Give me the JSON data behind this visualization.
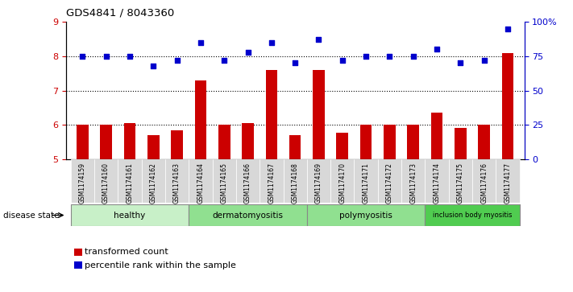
{
  "title": "GDS4841 / 8043360",
  "samples": [
    "GSM1174159",
    "GSM1174160",
    "GSM1174161",
    "GSM1174162",
    "GSM1174163",
    "GSM1174164",
    "GSM1174165",
    "GSM1174166",
    "GSM1174167",
    "GSM1174168",
    "GSM1174169",
    "GSM1174170",
    "GSM1174171",
    "GSM1174172",
    "GSM1174173",
    "GSM1174174",
    "GSM1174175",
    "GSM1174176",
    "GSM1174177"
  ],
  "bar_values": [
    6.0,
    6.0,
    6.05,
    5.7,
    5.85,
    7.3,
    6.0,
    6.05,
    7.6,
    5.7,
    7.6,
    5.78,
    6.0,
    6.0,
    6.0,
    6.35,
    5.9,
    6.0,
    8.1
  ],
  "dot_values_pct": [
    75,
    75,
    75,
    68,
    72,
    85,
    72,
    78,
    85,
    70,
    87,
    72,
    75,
    75,
    75,
    80,
    70,
    72,
    95
  ],
  "group_data": [
    {
      "name": "healthy",
      "start": 0,
      "end": 4,
      "color": "#c8f0c8"
    },
    {
      "name": "dermatomyositis",
      "start": 5,
      "end": 9,
      "color": "#90e090"
    },
    {
      "name": "polymyositis",
      "start": 10,
      "end": 14,
      "color": "#90e090"
    },
    {
      "name": "inclusion body myositis",
      "start": 15,
      "end": 18,
      "color": "#50cc50"
    }
  ],
  "ylim": [
    5.0,
    9.0
  ],
  "yticks": [
    5,
    6,
    7,
    8,
    9
  ],
  "right_yticks_pct": [
    0,
    25,
    50,
    75,
    100
  ],
  "right_yticks_vals": [
    5.0,
    6.0,
    7.0,
    8.0,
    9.0
  ],
  "bar_color": "#cc0000",
  "dot_color": "#0000cc",
  "bar_width": 0.5,
  "disease_state_label": "disease state"
}
